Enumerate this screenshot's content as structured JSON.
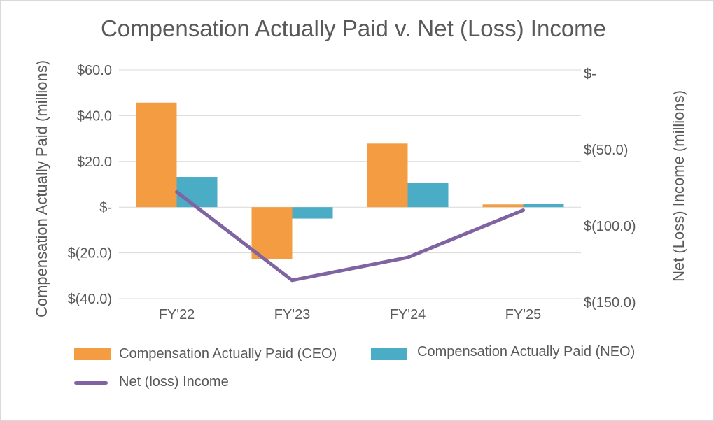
{
  "chart_data": {
    "type": "bar",
    "title": "Compensation Actually Paid v. Net (Loss) Income",
    "ylabel": "Compensation Actually Paid (millions)",
    "ylabel_right": "Net (Loss) Income (millions)",
    "categories": [
      "FY'22",
      "FY'23",
      "FY'24",
      "FY'25"
    ],
    "ylim": [
      -40,
      60
    ],
    "ylim_right": [
      -150,
      0
    ],
    "yticks_left": [
      "$60.0",
      "$40.0",
      "$20.0",
      "$-",
      "$(20.0)",
      "$(40.0)"
    ],
    "yticks_right": [
      "$-",
      "$(50.0)",
      "$(100.0)",
      "$(150.0)"
    ],
    "grid": true,
    "legend_position": "bottom",
    "series": [
      {
        "name": "Compensation Actually Paid (CEO)",
        "type": "bar",
        "axis": "left",
        "color": "#F39C41",
        "values": [
          45.7,
          -22.6,
          27.8,
          1.2
        ]
      },
      {
        "name": "Compensation Actually Paid (NEO)",
        "type": "bar",
        "axis": "left",
        "color": "#4BACC6",
        "values": [
          13.2,
          -5.0,
          10.5,
          1.5
        ]
      },
      {
        "name": "Net (loss) Income",
        "type": "line",
        "axis": "right",
        "color": "#8064A2",
        "values": [
          -80,
          -138,
          -123,
          -92
        ]
      }
    ]
  }
}
